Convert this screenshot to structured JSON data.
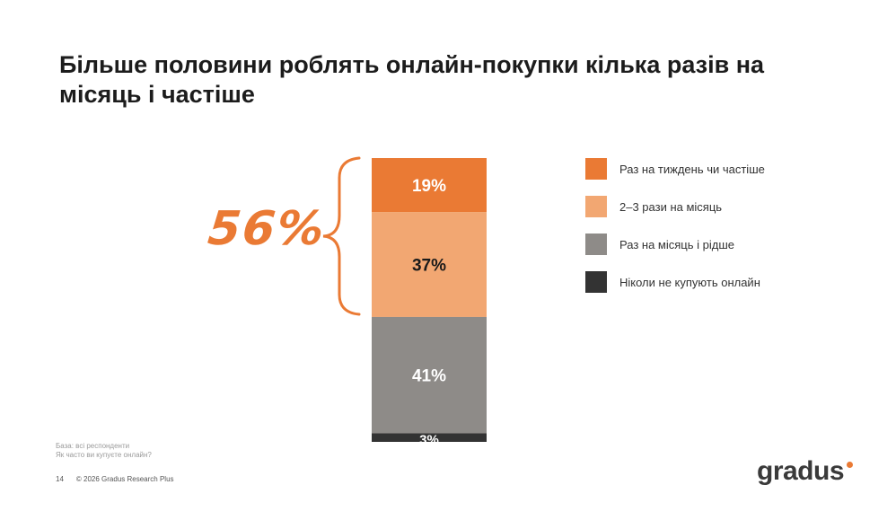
{
  "title": "Більше половини роблять онлайн-покупки кілька разів на місяць і частіше",
  "highlight": {
    "value": "56%",
    "color": "#ea7a34"
  },
  "chart_data": {
    "type": "bar",
    "stacked": true,
    "categories": [
      ""
    ],
    "series": [
      {
        "name": "Раз на тиждень чи частіше",
        "values": [
          19
        ],
        "label": "19%",
        "color": "#ea7a34",
        "label_color": "#ffffff"
      },
      {
        "name": "2–3 рази на місяць",
        "values": [
          37
        ],
        "label": "37%",
        "color": "#f2a772",
        "label_color": "#1a1a1a"
      },
      {
        "name": "Раз на місяць і рідше",
        "values": [
          41
        ],
        "label": "41%",
        "color": "#8e8b88",
        "label_color": "#ffffff"
      },
      {
        "name": "Ніколи не купують онлайн",
        "values": [
          3
        ],
        "label": "3%",
        "color": "#333333",
        "label_color": "#ffffff"
      }
    ],
    "ylim": [
      0,
      100
    ],
    "legend_position": "right",
    "grid": false
  },
  "footnote": {
    "base": "База: всі респонденти",
    "question": "Як часто ви купуєте онлайн?"
  },
  "footer": {
    "page": "14",
    "copyright": "© 2026 Gradus Research Plus"
  },
  "logo": {
    "text": "gradus"
  }
}
